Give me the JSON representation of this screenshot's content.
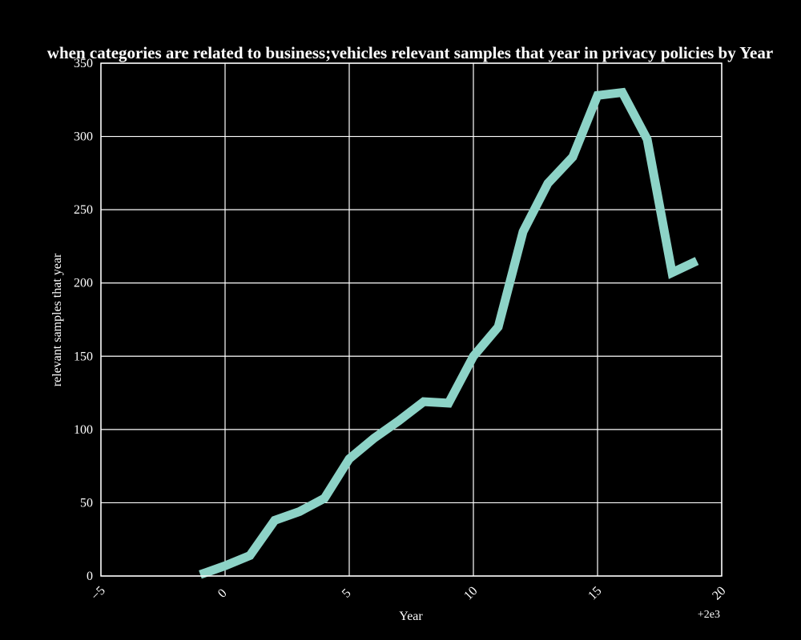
{
  "chart_data": {
    "type": "line",
    "title": "when categories are related to business;vehicles relevant samples that year in privacy policies by Year",
    "xlabel": "Year",
    "ylabel": "relevant samples that year",
    "x_offset_label": "+2e3",
    "xlim": [
      1995,
      2020
    ],
    "ylim": [
      0,
      350
    ],
    "x_tick_values": [
      1995,
      2000,
      2005,
      2010,
      2015,
      2020
    ],
    "x_tick_labels": [
      "−5",
      "0",
      "5",
      "10",
      "15",
      "20"
    ],
    "y_tick_values": [
      0,
      50,
      100,
      150,
      200,
      250,
      300,
      350
    ],
    "y_tick_labels": [
      "0",
      "50",
      "100",
      "150",
      "200",
      "250",
      "300",
      "350"
    ],
    "grid": true,
    "background": "#000000",
    "series": [
      {
        "color": "#8dd3c7",
        "x": [
          1999,
          2000,
          2001,
          2002,
          2003,
          2004,
          2005,
          2006,
          2007,
          2008,
          2009,
          2010,
          2011,
          2012,
          2013,
          2014,
          2015,
          2016,
          2017,
          2018,
          2019
        ],
        "y": [
          1,
          7,
          14,
          38,
          44,
          53,
          80,
          94,
          106,
          119,
          118,
          150,
          170,
          235,
          268,
          286,
          328,
          330,
          298,
          207,
          215
        ]
      }
    ]
  }
}
